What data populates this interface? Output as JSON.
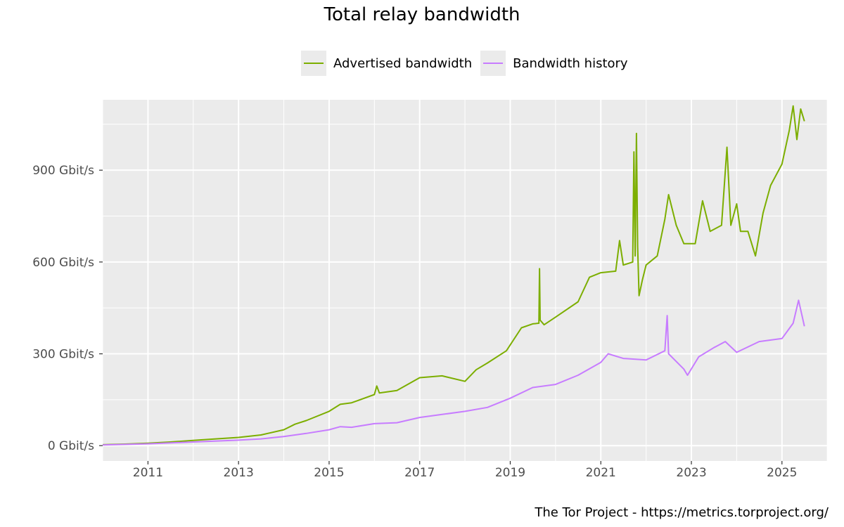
{
  "chart_data": {
    "type": "line",
    "title": "Total relay bandwidth",
    "xlabel": "",
    "ylabel": "",
    "y_unit": "Gbit/s",
    "xlim": [
      "2010-01-01",
      "2025-12-31"
    ],
    "ylim": [
      -50,
      1130
    ],
    "y_ticks": [
      0,
      300,
      600,
      900
    ],
    "y_tick_labels": [
      "0 Gbit/s",
      "300 Gbit/s",
      "600 Gbit/s",
      "900 Gbit/s"
    ],
    "x_ticks": [
      2011,
      2013,
      2015,
      2017,
      2019,
      2021,
      2023,
      2025
    ],
    "x_tick_labels": [
      "2011",
      "2013",
      "2015",
      "2017",
      "2019",
      "2021",
      "2023",
      "2025"
    ],
    "grid": true,
    "legend_position": "top",
    "series": [
      {
        "name": "Advertised bandwidth",
        "color": "#7cae00",
        "points": [
          [
            "2010-01-01",
            3
          ],
          [
            "2010-07-01",
            5
          ],
          [
            "2011-01-01",
            8
          ],
          [
            "2011-07-01",
            12
          ],
          [
            "2012-01-01",
            17
          ],
          [
            "2012-07-01",
            22
          ],
          [
            "2013-01-01",
            27
          ],
          [
            "2013-07-01",
            35
          ],
          [
            "2014-01-01",
            52
          ],
          [
            "2014-04-01",
            70
          ],
          [
            "2014-07-01",
            82
          ],
          [
            "2015-01-01",
            112
          ],
          [
            "2015-04-01",
            135
          ],
          [
            "2015-07-01",
            140
          ],
          [
            "2016-01-01",
            167
          ],
          [
            "2016-01-20",
            195
          ],
          [
            "2016-02-10",
            172
          ],
          [
            "2016-07-01",
            180
          ],
          [
            "2017-01-01",
            222
          ],
          [
            "2017-07-01",
            228
          ],
          [
            "2018-01-01",
            210
          ],
          [
            "2018-04-01",
            248
          ],
          [
            "2018-07-01",
            270
          ],
          [
            "2018-12-01",
            310
          ],
          [
            "2019-04-01",
            385
          ],
          [
            "2019-07-01",
            398
          ],
          [
            "2019-08-20",
            400
          ],
          [
            "2019-08-25",
            578
          ],
          [
            "2019-08-30",
            410
          ],
          [
            "2019-10-01",
            395
          ],
          [
            "2020-01-01",
            420
          ],
          [
            "2020-07-01",
            470
          ],
          [
            "2020-10-01",
            550
          ],
          [
            "2021-01-01",
            565
          ],
          [
            "2021-05-01",
            570
          ],
          [
            "2021-06-01",
            670
          ],
          [
            "2021-07-01",
            590
          ],
          [
            "2021-09-15",
            600
          ],
          [
            "2021-09-25",
            960
          ],
          [
            "2021-10-05",
            620
          ],
          [
            "2021-10-15",
            1020
          ],
          [
            "2021-10-25",
            650
          ],
          [
            "2021-11-05",
            490
          ],
          [
            "2021-12-01",
            540
          ],
          [
            "2022-01-01",
            590
          ],
          [
            "2022-04-01",
            620
          ],
          [
            "2022-06-01",
            740
          ],
          [
            "2022-07-01",
            820
          ],
          [
            "2022-09-01",
            720
          ],
          [
            "2022-11-01",
            660
          ],
          [
            "2023-02-01",
            660
          ],
          [
            "2023-04-01",
            800
          ],
          [
            "2023-06-01",
            700
          ],
          [
            "2023-09-01",
            720
          ],
          [
            "2023-10-15",
            975
          ],
          [
            "2023-11-15",
            720
          ],
          [
            "2024-01-01",
            790
          ],
          [
            "2024-02-01",
            700
          ],
          [
            "2024-04-01",
            700
          ],
          [
            "2024-06-01",
            620
          ],
          [
            "2024-08-01",
            760
          ],
          [
            "2024-10-01",
            850
          ],
          [
            "2025-01-01",
            920
          ],
          [
            "2025-03-01",
            1030
          ],
          [
            "2025-04-01",
            1110
          ],
          [
            "2025-05-01",
            1000
          ],
          [
            "2025-06-01",
            1100
          ],
          [
            "2025-07-01",
            1060
          ]
        ]
      },
      {
        "name": "Bandwidth history",
        "color": "#c77cff",
        "points": [
          [
            "2010-01-01",
            2
          ],
          [
            "2011-01-01",
            6
          ],
          [
            "2012-01-01",
            12
          ],
          [
            "2013-01-01",
            18
          ],
          [
            "2013-07-01",
            22
          ],
          [
            "2014-01-01",
            30
          ],
          [
            "2014-07-01",
            40
          ],
          [
            "2015-01-01",
            52
          ],
          [
            "2015-04-01",
            62
          ],
          [
            "2015-07-01",
            60
          ],
          [
            "2016-01-01",
            72
          ],
          [
            "2016-07-01",
            75
          ],
          [
            "2017-01-01",
            92
          ],
          [
            "2017-07-01",
            102
          ],
          [
            "2018-01-01",
            112
          ],
          [
            "2018-07-01",
            125
          ],
          [
            "2019-01-01",
            155
          ],
          [
            "2019-07-01",
            190
          ],
          [
            "2020-01-01",
            200
          ],
          [
            "2020-07-01",
            230
          ],
          [
            "2021-01-01",
            272
          ],
          [
            "2021-03-01",
            300
          ],
          [
            "2021-07-01",
            285
          ],
          [
            "2022-01-01",
            280
          ],
          [
            "2022-06-01",
            310
          ],
          [
            "2022-06-20",
            425
          ],
          [
            "2022-07-01",
            300
          ],
          [
            "2022-11-01",
            250
          ],
          [
            "2022-12-01",
            230
          ],
          [
            "2023-03-01",
            290
          ],
          [
            "2023-07-01",
            320
          ],
          [
            "2023-10-01",
            340
          ],
          [
            "2024-01-01",
            305
          ],
          [
            "2024-07-01",
            340
          ],
          [
            "2025-01-01",
            350
          ],
          [
            "2025-04-01",
            400
          ],
          [
            "2025-05-15",
            475
          ],
          [
            "2025-07-01",
            390
          ]
        ]
      }
    ]
  },
  "caption": "The Tor Project - https://metrics.torproject.org/"
}
